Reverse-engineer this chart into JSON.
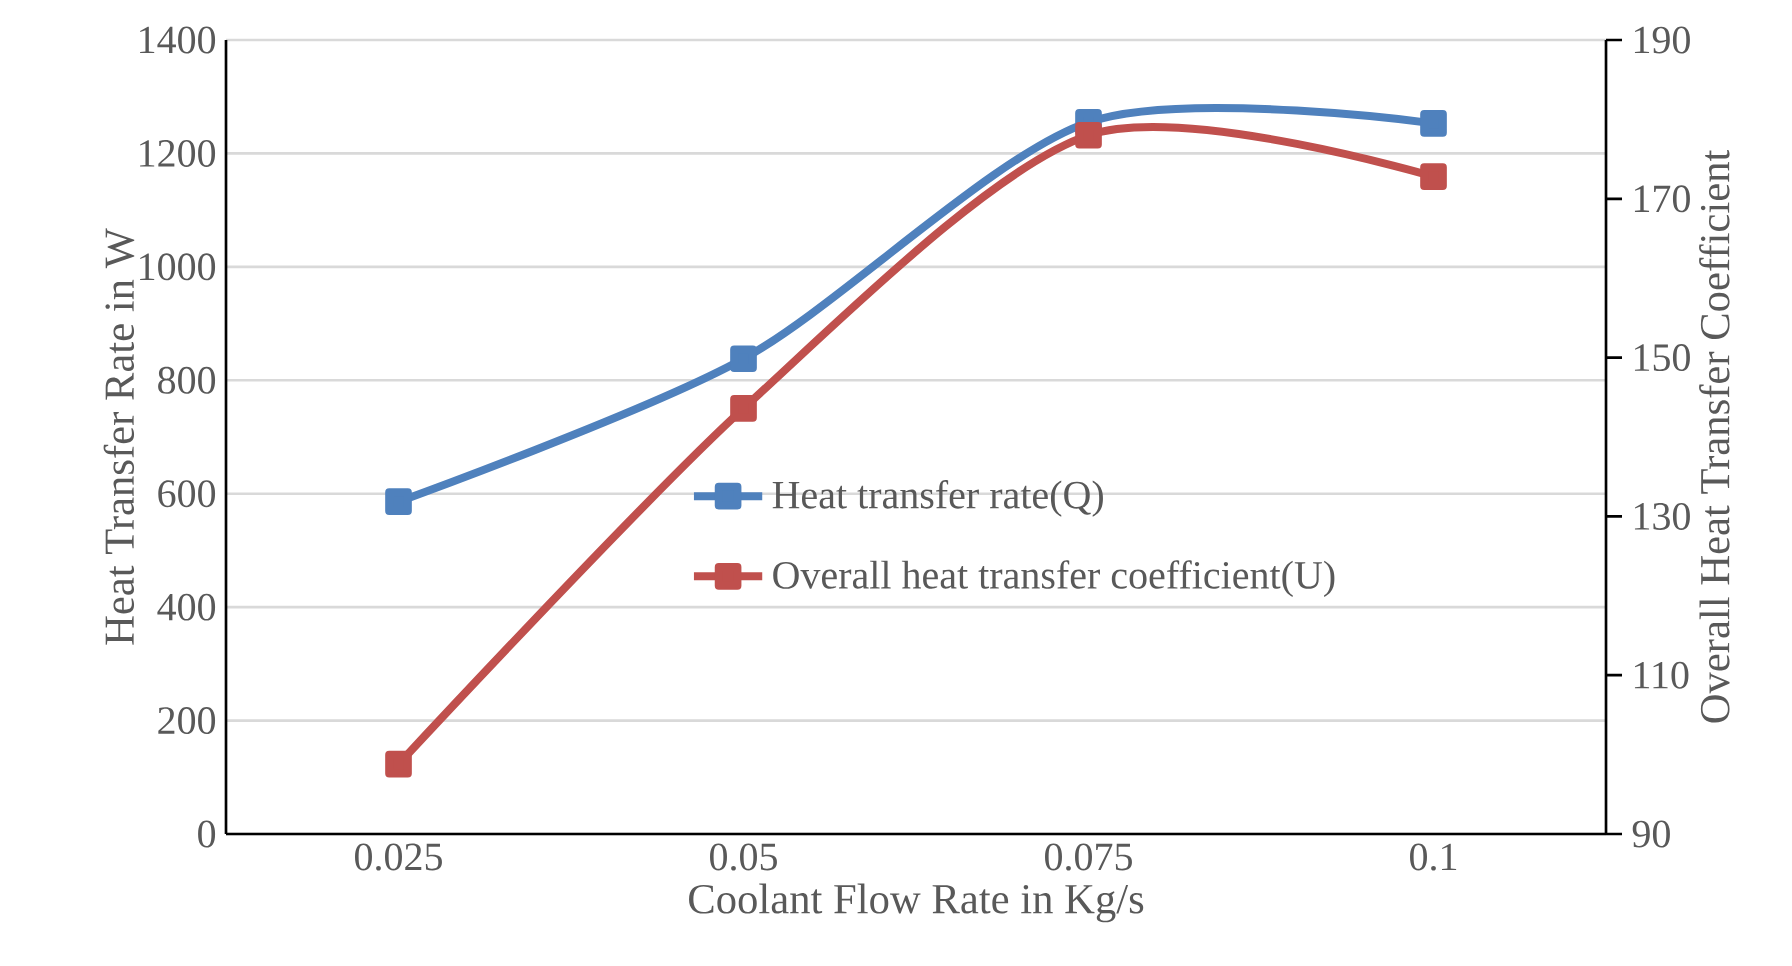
{
  "chart_data": {
    "type": "line",
    "xlabel": "Coolant Flow Rate in Kg/s",
    "ylabel": "Heat Transfer Rate in W",
    "y2label": "Overall Heat Transfer Coefficient",
    "categories": [
      "0.025",
      "0.05",
      "0.075",
      "0.1"
    ],
    "series": [
      {
        "name": "Heat transfer rate(Q)",
        "color": "#4f81bd",
        "values": [
          586,
          838,
          1255,
          1253
        ]
      },
      {
        "name": "Overall heat transfer  coefficient(U)",
        "color": "#c0504d",
        "axis": "y2",
        "values": [
          98.8,
          143.6,
          178,
          172.8
        ]
      }
    ],
    "ylim": [
      0,
      1400
    ],
    "yticks": [
      0,
      200,
      400,
      600,
      800,
      1000,
      1200,
      1400
    ],
    "y2lim": [
      90,
      190
    ],
    "y2ticks": [
      90,
      110,
      130,
      150,
      170,
      190
    ],
    "grid": "y",
    "legend": "center",
    "marker": "square",
    "line_style": "solid"
  }
}
